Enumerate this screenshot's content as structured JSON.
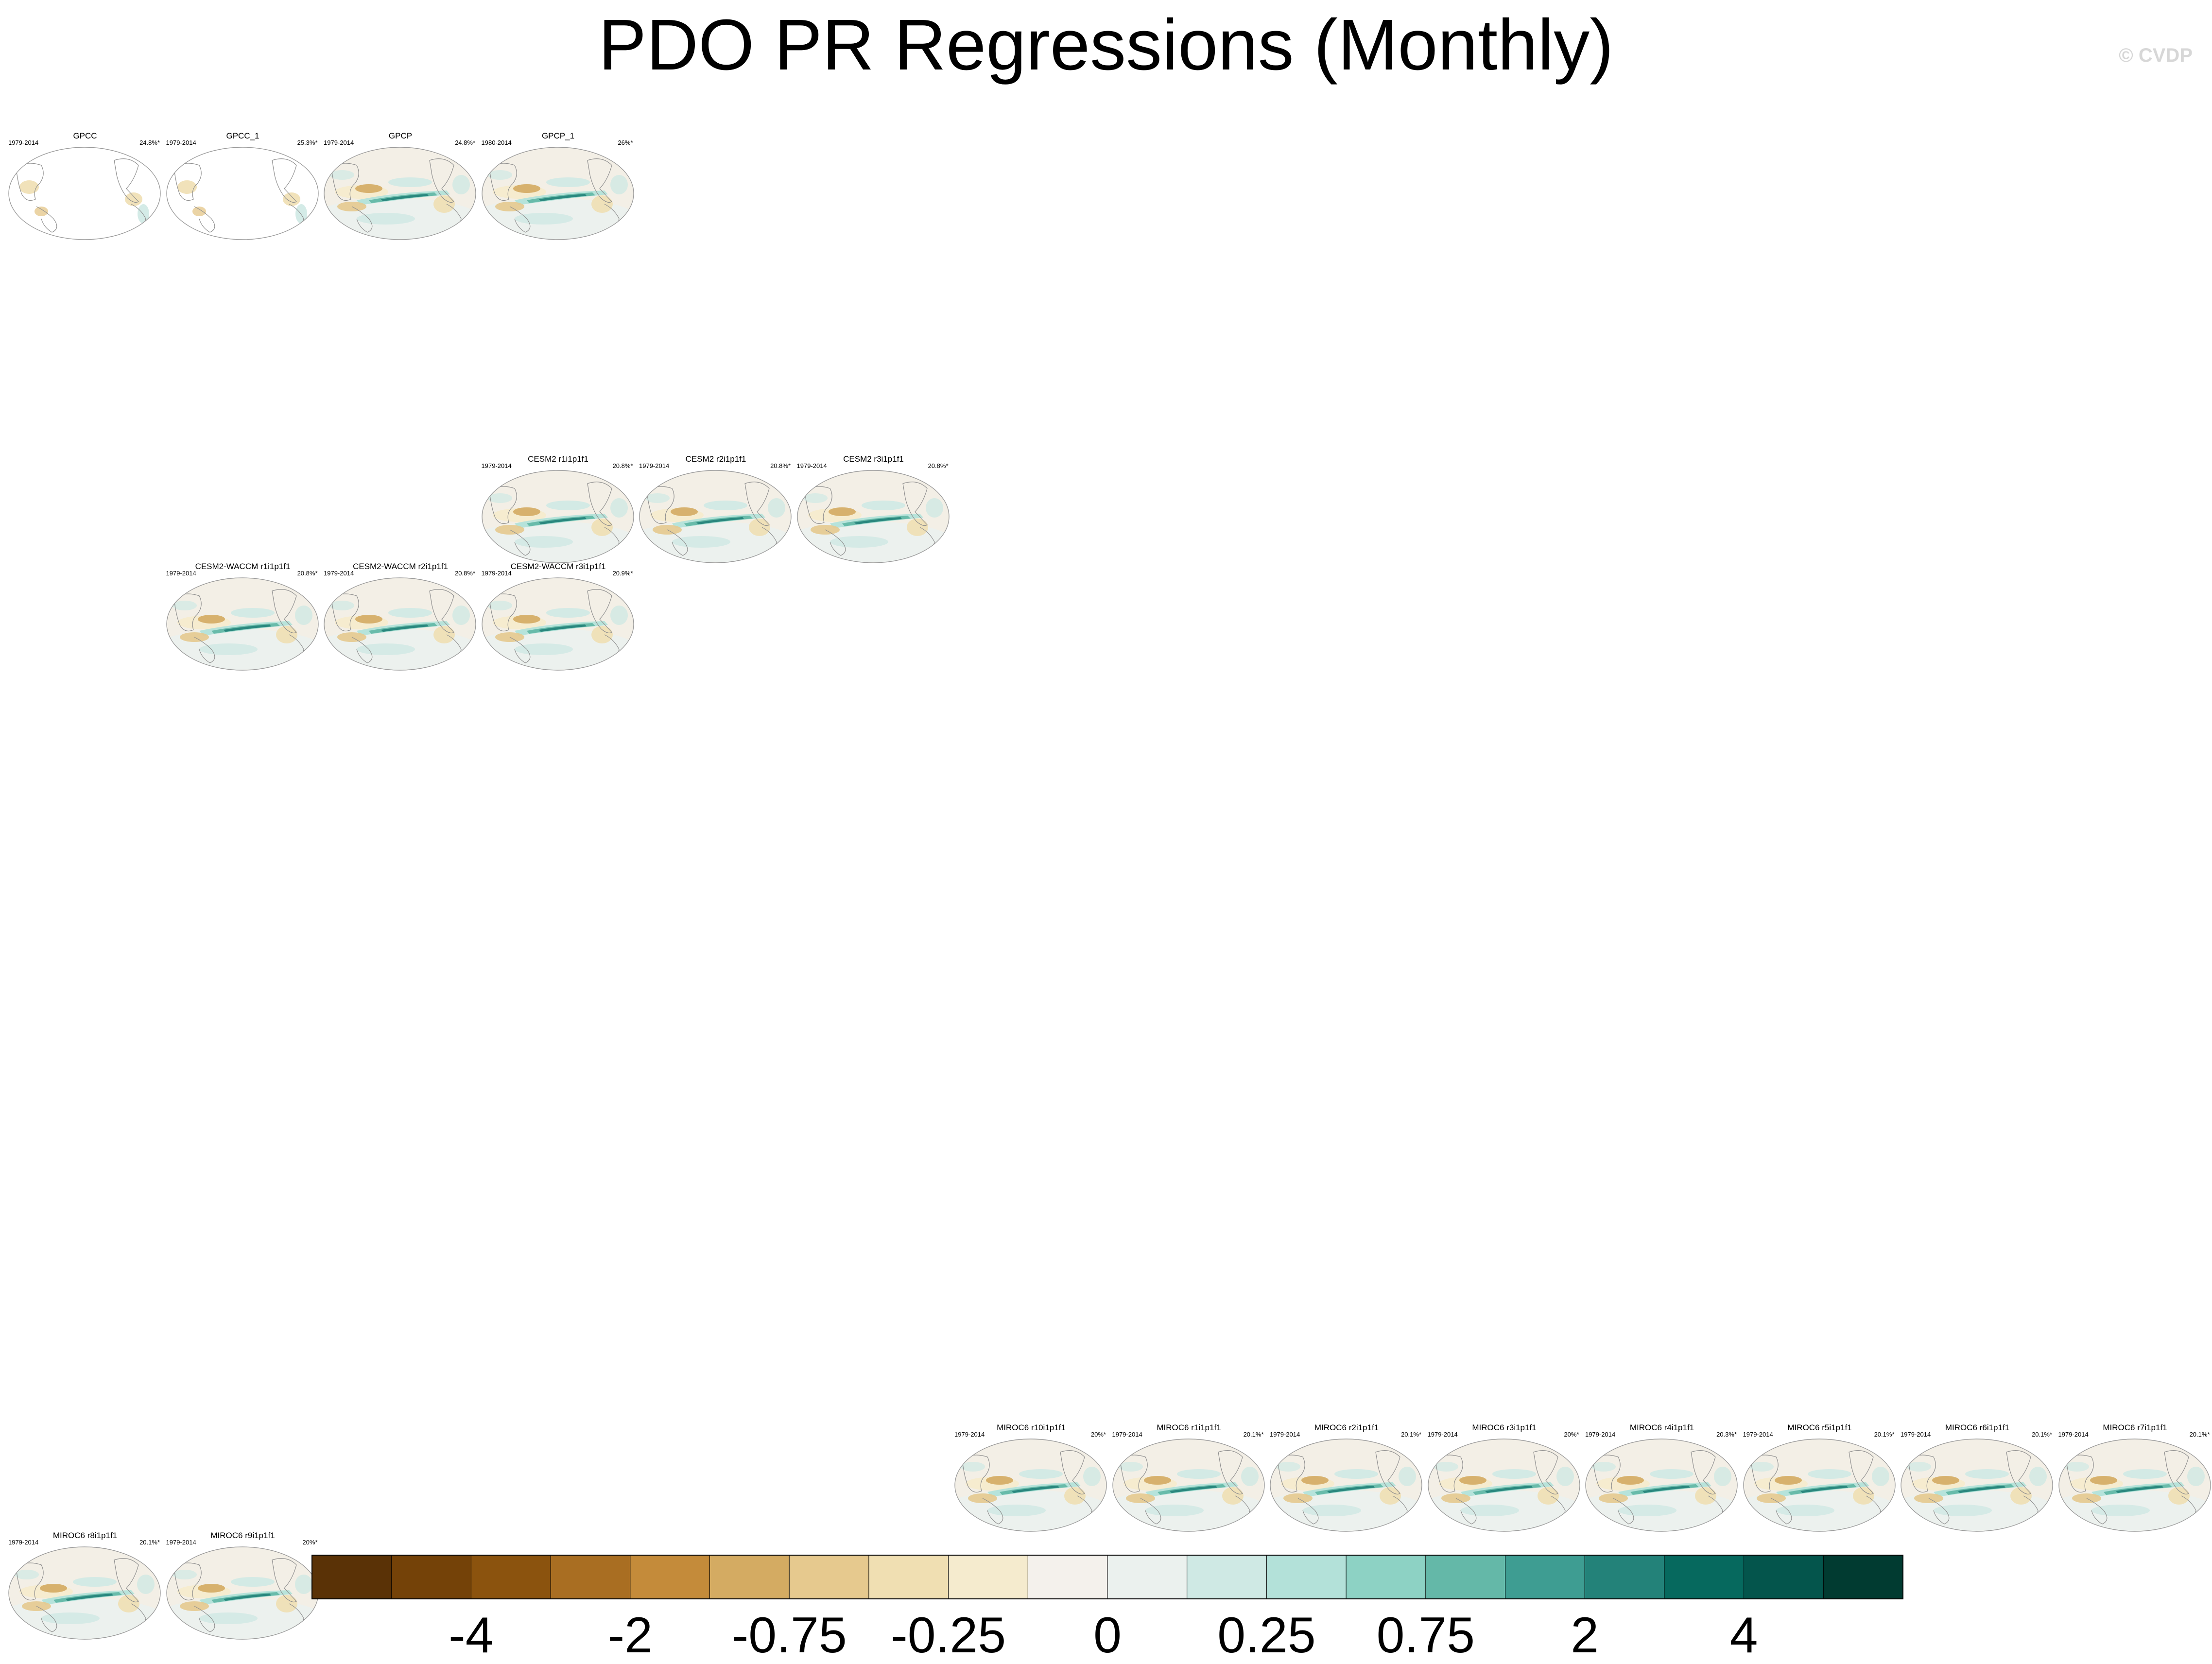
{
  "title": "PDO PR Regressions (Monthly)",
  "credit": "© CVDP",
  "chart_data": {
    "type": "heatmap",
    "title": "PDO PR Regressions (Monthly)",
    "colorbar": {
      "colors": [
        "#5a3206",
        "#744208",
        "#8b530e",
        "#a96e22",
        "#c48b3a",
        "#d4ab62",
        "#e6c98e",
        "#f0dfb2",
        "#f5ebce",
        "#f4f1ec",
        "#ebf1ee",
        "#cfe9e4",
        "#b3e1d9",
        "#8dd2c4",
        "#64b8a8",
        "#3e9d92",
        "#238279",
        "#06695e",
        "#04554c",
        "#013b31"
      ],
      "tick_labels": [
        "-4",
        "-2",
        "-0.75",
        "-0.25",
        "0",
        "0.25",
        "0.75",
        "2",
        "4"
      ]
    },
    "panels": [
      {
        "name": "GPCC",
        "years": "1979-2014",
        "pct": "24.8%*",
        "row": 0,
        "col": 0,
        "data": "obs-sparse"
      },
      {
        "name": "GPCC_1",
        "years": "1979-2014",
        "pct": "25.3%*",
        "row": 0,
        "col": 1,
        "data": "obs-sparse"
      },
      {
        "name": "GPCP",
        "years": "1979-2014",
        "pct": "24.8%*",
        "row": 0,
        "col": 2,
        "data": "full"
      },
      {
        "name": "GPCP_1",
        "years": "1980-2014",
        "pct": "26%*",
        "row": 0,
        "col": 3,
        "data": "full"
      },
      {
        "name": "CESM2 r1i1p1f1",
        "years": "1979-2014",
        "pct": "20.8%*",
        "row": 3,
        "col": 3,
        "data": "full"
      },
      {
        "name": "CESM2 r2i1p1f1",
        "years": "1979-2014",
        "pct": "20.8%*",
        "row": 3,
        "col": 4,
        "data": "full"
      },
      {
        "name": "CESM2 r3i1p1f1",
        "years": "1979-2014",
        "pct": "20.8%*",
        "row": 3,
        "col": 5,
        "data": "full"
      },
      {
        "name": "CESM2-WACCM r1i1p1f1",
        "years": "1979-2014",
        "pct": "20.8%*",
        "row": 4,
        "col": 1,
        "data": "full"
      },
      {
        "name": "CESM2-WACCM r2i1p1f1",
        "years": "1979-2014",
        "pct": "20.8%*",
        "row": 4,
        "col": 2,
        "data": "full"
      },
      {
        "name": "CESM2-WACCM r3i1p1f1",
        "years": "1979-2014",
        "pct": "20.9%*",
        "row": 4,
        "col": 3,
        "data": "full"
      },
      {
        "name": "MIROC6 r10i1p1f1",
        "years": "1979-2014",
        "pct": "20%*",
        "row": 12,
        "col": 6,
        "data": "full"
      },
      {
        "name": "MIROC6 r1i1p1f1",
        "years": "1979-2014",
        "pct": "20.1%*",
        "row": 12,
        "col": 7,
        "data": "full"
      },
      {
        "name": "MIROC6 r2i1p1f1",
        "years": "1979-2014",
        "pct": "20.1%*",
        "row": 12,
        "col": 8,
        "data": "full"
      },
      {
        "name": "MIROC6 r3i1p1f1",
        "years": "1979-2014",
        "pct": "20%*",
        "row": 12,
        "col": 9,
        "data": "full"
      },
      {
        "name": "MIROC6 r4i1p1f1",
        "years": "1979-2014",
        "pct": "20.3%*",
        "row": 12,
        "col": 10,
        "data": "full"
      },
      {
        "name": "MIROC6 r5i1p1f1",
        "years": "1979-2014",
        "pct": "20.1%*",
        "row": 12,
        "col": 11,
        "data": "full"
      },
      {
        "name": "MIROC6 r6i1p1f1",
        "years": "1979-2014",
        "pct": "20.1%*",
        "row": 12,
        "col": 12,
        "data": "full"
      },
      {
        "name": "MIROC6 r7i1p1f1",
        "years": "1979-2014",
        "pct": "20.1%*",
        "row": 12,
        "col": 13,
        "data": "full"
      },
      {
        "name": "MIROC6 r8i1p1f1",
        "years": "1979-2014",
        "pct": "20.1%*",
        "row": 13,
        "col": 0,
        "data": "full"
      },
      {
        "name": "MIROC6 r9i1p1f1",
        "years": "1979-2014",
        "pct": "20%*",
        "row": 13,
        "col": 1,
        "data": "full"
      }
    ]
  }
}
